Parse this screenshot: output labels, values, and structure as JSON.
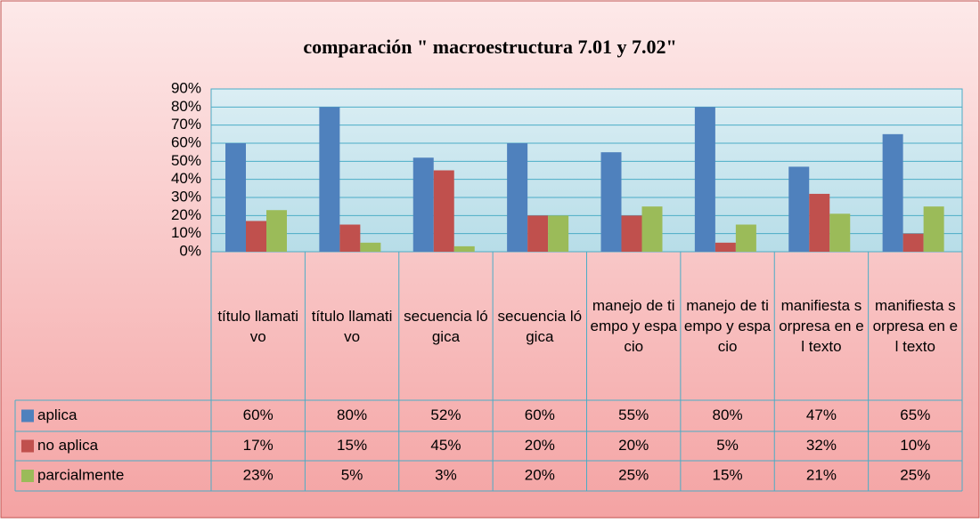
{
  "chart_data": {
    "type": "bar",
    "title": "comparación \" macroestructura 7.01 y 7.02\"",
    "categories": [
      "título llamativo",
      "título llamativo",
      "secuencia lógica",
      "secuencia lógica",
      "manejo de tiempo y espacio",
      "manejo de tiempo y espacio",
      "manifiesta sorpresa en el texto",
      "manifiesta sorpresa en el texto"
    ],
    "series": [
      {
        "name": "aplica",
        "color": "#4f81bd",
        "values": [
          60,
          80,
          52,
          60,
          55,
          80,
          47,
          65
        ],
        "value_labels": [
          "60%",
          "80%",
          "52%",
          "60%",
          "55%",
          "80%",
          "47%",
          "65%"
        ]
      },
      {
        "name": "no aplica",
        "color": "#c0504d",
        "values": [
          17,
          15,
          45,
          20,
          20,
          5,
          32,
          10
        ],
        "value_labels": [
          "17%",
          "15%",
          "45%",
          "20%",
          "20%",
          "5%",
          "32%",
          "10%"
        ]
      },
      {
        "name": "parcialmente",
        "color": "#9bbb59",
        "values": [
          23,
          5,
          3,
          20,
          25,
          15,
          21,
          25
        ],
        "value_labels": [
          "23%",
          "5%",
          "3%",
          "20%",
          "25%",
          "15%",
          "21%",
          "25%"
        ]
      }
    ],
    "ylim": [
      0,
      90
    ],
    "yticks": [
      {
        "value": 0,
        "label": "0%"
      },
      {
        "value": 10,
        "label": "10%"
      },
      {
        "value": 20,
        "label": "20%"
      },
      {
        "value": 30,
        "label": "30%"
      },
      {
        "value": 40,
        "label": "40%"
      },
      {
        "value": 50,
        "label": "50%"
      },
      {
        "value": 60,
        "label": "60%"
      },
      {
        "value": 70,
        "label": "70%"
      },
      {
        "value": 80,
        "label": "80%"
      },
      {
        "value": 90,
        "label": "90%"
      }
    ],
    "grid": true
  }
}
